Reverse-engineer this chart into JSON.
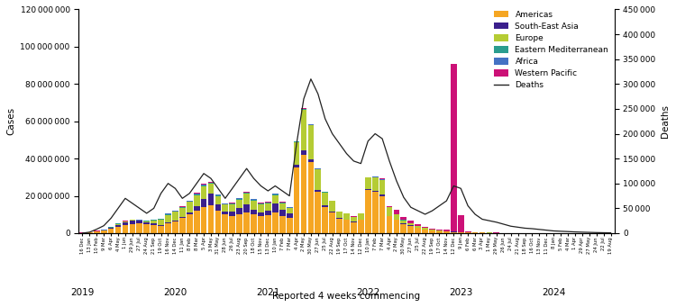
{
  "title": "",
  "xlabel": "Reported 4 weeks commencing",
  "ylabel_left": "Cases",
  "ylabel_right": "Deaths",
  "bar_colors": {
    "Americas": "#F5A623",
    "South-East Asia": "#3B1F8C",
    "Europe": "#B5CC34",
    "Eastern Mediterranean": "#2A9D8F",
    "Africa": "#4472C4",
    "Western Pacific": "#CC1177"
  },
  "deaths_color": "#222222",
  "ylim_cases": [
    0,
    120000000
  ],
  "ylim_deaths": [
    0,
    450000
  ],
  "tick_labels": [
    "16 Dec",
    "13 Jan",
    "10 Feb",
    "9 Mar",
    "6 Apr",
    "4 May",
    "1 Jun",
    "29 Jun",
    "27 Jul",
    "24 Aug",
    "21 Sep",
    "19 Oct",
    "16 Nov",
    "14 Dec",
    "11 Jan",
    "8 Feb",
    "8 Mar",
    "5 Apr",
    "3 May",
    "31 May",
    "28 Jun",
    "26 Jul",
    "23 Aug",
    "20 Sep",
    "18 Oct",
    "15 Nov",
    "13 Dec",
    "10 Jan",
    "7 Feb",
    "7 Mar",
    "4 Apr",
    "2 May",
    "30 May",
    "27 Jun",
    "25 Jul",
    "22 Aug",
    "19 Sep",
    "17 Oct",
    "14 Nov",
    "12 Dec",
    "10 Jan",
    "7 Feb",
    "7 Mar",
    "4 Apr",
    "2 May",
    "30 May",
    "27 Jun",
    "25 Jul",
    "22 Aug",
    "19 Sep",
    "17 Oct",
    "14 Nov",
    "12 Dec",
    "9 Jan",
    "6 Feb",
    "6 Mar",
    "3 Apr",
    "1 May",
    "29 May",
    "26 Jun",
    "24 Jul",
    "21 Aug",
    "18 Sep",
    "16 Oct",
    "13 Nov",
    "11 Dec",
    "8 Jan",
    "5 Feb",
    "4 Mar",
    "1 Apr",
    "29 Apr",
    "27 May",
    "24 Jun",
    "22 Jul",
    "19 Aug"
  ],
  "year_boundaries": [
    0,
    13,
    26,
    40,
    53,
    66
  ],
  "year_labels": [
    "2019",
    "2020",
    "2021",
    "2022",
    "2023",
    "2024"
  ],
  "Americas": [
    200000,
    500000,
    1000000,
    1500000,
    2500000,
    3500000,
    4500000,
    5000000,
    5500000,
    5000000,
    4500000,
    4000000,
    5500000,
    6500000,
    8000000,
    10000000,
    12000000,
    14000000,
    15000000,
    12000000,
    10000000,
    9000000,
    10000000,
    11000000,
    10000000,
    9000000,
    9500000,
    11000000,
    9000000,
    8000000,
    35000000,
    42000000,
    38000000,
    22000000,
    14000000,
    11000000,
    7500000,
    7000000,
    6000000,
    7000000,
    23000000,
    22000000,
    20000000,
    9000000,
    7000000,
    5000000,
    4000000,
    3000000,
    2000000,
    1500000,
    1000000,
    900000,
    700000,
    500000,
    400000,
    300000,
    250000,
    200000,
    150000,
    100000,
    80000,
    60000,
    50000,
    40000,
    30000,
    25000,
    20000,
    15000,
    12000,
    10000,
    8000,
    6000,
    5000,
    4000,
    3000
  ],
  "SouthEastAsia": [
    0,
    0,
    0,
    0,
    300000,
    800000,
    1200000,
    1800000,
    1200000,
    800000,
    600000,
    500000,
    500000,
    400000,
    700000,
    1200000,
    2500000,
    4500000,
    6000000,
    3500000,
    1800000,
    2500000,
    3500000,
    4500000,
    2500000,
    2000000,
    2500000,
    5000000,
    3500000,
    2500000,
    1800000,
    2200000,
    1800000,
    1200000,
    900000,
    700000,
    500000,
    400000,
    300000,
    250000,
    450000,
    550000,
    600000,
    350000,
    250000,
    180000,
    130000,
    90000,
    70000,
    50000,
    40000,
    30000,
    25000,
    18000,
    12000,
    9000,
    7000,
    5000,
    3500,
    2500,
    1800,
    1200,
    900,
    700,
    500,
    400,
    300,
    200,
    150,
    100,
    80,
    60,
    50,
    40,
    30
  ],
  "Europe": [
    0,
    0,
    0,
    100000,
    300000,
    600000,
    500000,
    300000,
    200000,
    600000,
    1800000,
    2800000,
    3800000,
    4500000,
    5000000,
    5500000,
    6000000,
    6500000,
    5500000,
    4500000,
    3500000,
    4000000,
    4500000,
    5500000,
    5000000,
    4500000,
    4000000,
    4500000,
    3500000,
    3000000,
    12000000,
    22000000,
    18000000,
    11000000,
    7000000,
    5500000,
    3500000,
    3000000,
    2500000,
    3500000,
    6500000,
    7500000,
    8000000,
    4500000,
    2800000,
    1800000,
    1300000,
    900000,
    600000,
    450000,
    350000,
    250000,
    180000,
    130000,
    90000,
    70000,
    55000,
    40000,
    30000,
    22000,
    16000,
    12000,
    9000,
    7000,
    5000,
    4000,
    3000,
    2000,
    1500,
    1200,
    900,
    700,
    500,
    400,
    300
  ],
  "EasternMediterranean": [
    0,
    0,
    0,
    50000,
    150000,
    250000,
    150000,
    100000,
    80000,
    150000,
    250000,
    350000,
    400000,
    350000,
    250000,
    350000,
    450000,
    550000,
    450000,
    350000,
    250000,
    350000,
    450000,
    550000,
    450000,
    350000,
    300000,
    350000,
    280000,
    220000,
    280000,
    350000,
    300000,
    220000,
    180000,
    130000,
    90000,
    70000,
    55000,
    45000,
    90000,
    100000,
    95000,
    60000,
    45000,
    35000,
    25000,
    18000,
    13000,
    9000,
    7000,
    5000,
    3500,
    2500,
    1800,
    1300,
    900,
    700,
    500,
    400,
    300,
    250,
    180,
    130,
    90,
    70,
    55,
    40,
    30,
    25,
    18,
    13,
    9,
    7,
    5
  ],
  "Africa": [
    0,
    0,
    0,
    30000,
    80000,
    120000,
    90000,
    70000,
    55000,
    90000,
    130000,
    180000,
    220000,
    180000,
    130000,
    180000,
    270000,
    360000,
    310000,
    270000,
    180000,
    220000,
    270000,
    360000,
    310000,
    270000,
    220000,
    270000,
    220000,
    180000,
    130000,
    180000,
    160000,
    110000,
    90000,
    70000,
    55000,
    45000,
    35000,
    27000,
    45000,
    55000,
    50000,
    32000,
    22000,
    18000,
    13000,
    9000,
    7000,
    5500,
    3500,
    2700,
    2000,
    1300,
    900,
    700,
    500,
    400,
    300,
    220,
    160,
    120,
    90,
    70,
    50,
    40,
    30,
    22,
    16,
    12,
    9,
    7,
    5,
    4,
    3
  ],
  "WesternPacific": [
    50000,
    100000,
    200000,
    300000,
    250000,
    180000,
    130000,
    90000,
    70000,
    55000,
    45000,
    55000,
    90000,
    130000,
    180000,
    270000,
    360000,
    450000,
    360000,
    270000,
    180000,
    220000,
    270000,
    310000,
    270000,
    220000,
    180000,
    270000,
    220000,
    180000,
    130000,
    180000,
    160000,
    110000,
    90000,
    70000,
    55000,
    45000,
    35000,
    27000,
    45000,
    55000,
    500000,
    350000,
    2200000,
    1800000,
    1300000,
    900000,
    600000,
    450000,
    350000,
    700000,
    90000000,
    9000000,
    450000,
    270000,
    180000,
    130000,
    90000,
    70000,
    55000,
    45000,
    35000,
    27000,
    18000,
    13000,
    9000,
    7000,
    5000,
    4000,
    3000,
    2500,
    1800,
    1300,
    900
  ],
  "deaths": [
    0,
    2000,
    8000,
    15000,
    30000,
    50000,
    70000,
    60000,
    50000,
    40000,
    50000,
    80000,
    100000,
    90000,
    70000,
    80000,
    100000,
    120000,
    110000,
    90000,
    70000,
    90000,
    110000,
    130000,
    110000,
    95000,
    85000,
    95000,
    85000,
    75000,
    180000,
    270000,
    310000,
    280000,
    230000,
    200000,
    180000,
    160000,
    145000,
    140000,
    185000,
    200000,
    190000,
    145000,
    105000,
    72000,
    52000,
    45000,
    38000,
    45000,
    55000,
    65000,
    95000,
    90000,
    55000,
    38000,
    28000,
    25000,
    22000,
    18000,
    14000,
    12000,
    10000,
    9000,
    7500,
    6000,
    4500,
    3800,
    3200,
    2500,
    2000,
    1600,
    1200,
    900,
    700
  ]
}
